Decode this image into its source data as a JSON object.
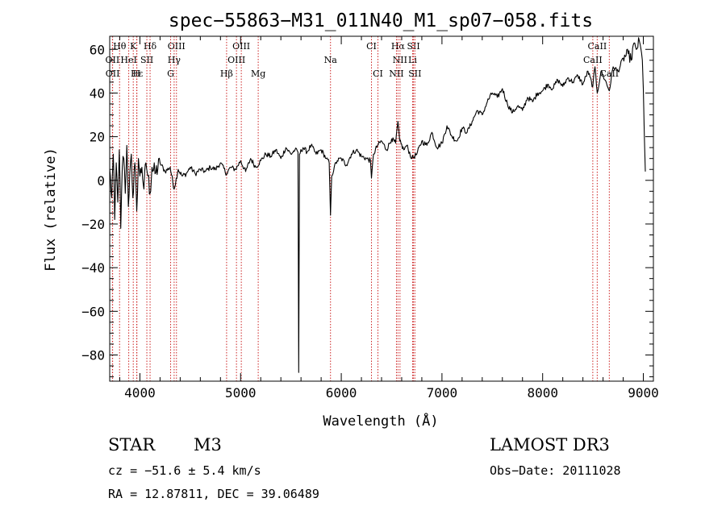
{
  "chart_data": {
    "type": "line",
    "title": "spec−55863−M31_011N40_M1_sp07−058.fits",
    "xlabel": "Wavelength (Å)",
    "ylabel": "Flux (relative)",
    "xlim": [
      3700,
      9100
    ],
    "ylim": [
      -92,
      66
    ],
    "x_ticks": [
      4000,
      5000,
      6000,
      7000,
      8000,
      9000
    ],
    "x_tick_labels": [
      "4000",
      "5000",
      "6000",
      "7000",
      "8000",
      "9000"
    ],
    "y_ticks": [
      -80,
      -60,
      -40,
      -20,
      0,
      20,
      40,
      60
    ],
    "y_tick_labels": [
      "−80",
      "−60",
      "−40",
      "−20",
      "0",
      "20",
      "40",
      "60"
    ],
    "grid": false,
    "series": [
      {
        "name": "spectrum",
        "color": "#000000",
        "anchors": [
          [
            3700,
            5
          ],
          [
            3720,
            -8
          ],
          [
            3735,
            12
          ],
          [
            3750,
            -18
          ],
          [
            3765,
            8
          ],
          [
            3780,
            -10
          ],
          [
            3795,
            14
          ],
          [
            3810,
            -22
          ],
          [
            3825,
            6
          ],
          [
            3840,
            10
          ],
          [
            3855,
            -6
          ],
          [
            3870,
            16
          ],
          [
            3885,
            -12
          ],
          [
            3900,
            4
          ],
          [
            3915,
            12
          ],
          [
            3930,
            -8
          ],
          [
            3950,
            8
          ],
          [
            3968,
            -14
          ],
          [
            3985,
            10
          ],
          [
            4000,
            2
          ],
          [
            4020,
            6
          ],
          [
            4040,
            -4
          ],
          [
            4060,
            8
          ],
          [
            4080,
            2
          ],
          [
            4101,
            -6
          ],
          [
            4120,
            6
          ],
          [
            4150,
            3
          ],
          [
            4200,
            8
          ],
          [
            4250,
            4
          ],
          [
            4300,
            6
          ],
          [
            4340,
            -4
          ],
          [
            4380,
            5
          ],
          [
            4420,
            2
          ],
          [
            4460,
            3
          ],
          [
            4500,
            6
          ],
          [
            4550,
            3
          ],
          [
            4600,
            5
          ],
          [
            4650,
            4
          ],
          [
            4700,
            6
          ],
          [
            4750,
            5
          ],
          [
            4800,
            8
          ],
          [
            4861,
            3
          ],
          [
            4900,
            6
          ],
          [
            4950,
            5
          ],
          [
            5000,
            9
          ],
          [
            5050,
            4
          ],
          [
            5100,
            10
          ],
          [
            5150,
            6
          ],
          [
            5200,
            9
          ],
          [
            5250,
            12
          ],
          [
            5300,
            11
          ],
          [
            5350,
            14
          ],
          [
            5400,
            10
          ],
          [
            5450,
            15
          ],
          [
            5500,
            12
          ],
          [
            5540,
            14
          ],
          [
            5570,
            13
          ],
          [
            5577,
            -88
          ],
          [
            5585,
            12
          ],
          [
            5620,
            15
          ],
          [
            5660,
            13
          ],
          [
            5700,
            16
          ],
          [
            5750,
            12
          ],
          [
            5800,
            14
          ],
          [
            5850,
            10
          ],
          [
            5880,
            8
          ],
          [
            5893,
            -16
          ],
          [
            5905,
            2
          ],
          [
            5930,
            6
          ],
          [
            5960,
            9
          ],
          [
            6000,
            10
          ],
          [
            6050,
            7
          ],
          [
            6100,
            12
          ],
          [
            6150,
            14
          ],
          [
            6200,
            11
          ],
          [
            6250,
            10
          ],
          [
            6290,
            9
          ],
          [
            6300,
            1
          ],
          [
            6320,
            12
          ],
          [
            6360,
            16
          ],
          [
            6400,
            18
          ],
          [
            6450,
            14
          ],
          [
            6500,
            19
          ],
          [
            6540,
            17
          ],
          [
            6563,
            27
          ],
          [
            6580,
            18
          ],
          [
            6620,
            14
          ],
          [
            6650,
            16
          ],
          [
            6700,
            10
          ],
          [
            6750,
            12
          ],
          [
            6800,
            18
          ],
          [
            6850,
            16
          ],
          [
            6900,
            22
          ],
          [
            6950,
            15
          ],
          [
            7000,
            17
          ],
          [
            7050,
            25
          ],
          [
            7100,
            20
          ],
          [
            7150,
            18
          ],
          [
            7200,
            24
          ],
          [
            7250,
            22
          ],
          [
            7300,
            27
          ],
          [
            7350,
            32
          ],
          [
            7400,
            30
          ],
          [
            7450,
            36
          ],
          [
            7500,
            40
          ],
          [
            7550,
            38
          ],
          [
            7600,
            42
          ],
          [
            7650,
            35
          ],
          [
            7700,
            31
          ],
          [
            7750,
            34
          ],
          [
            7800,
            32
          ],
          [
            7850,
            38
          ],
          [
            7900,
            36
          ],
          [
            7950,
            40
          ],
          [
            8000,
            41
          ],
          [
            8050,
            44
          ],
          [
            8100,
            42
          ],
          [
            8150,
            46
          ],
          [
            8200,
            43
          ],
          [
            8250,
            47
          ],
          [
            8300,
            45
          ],
          [
            8350,
            48
          ],
          [
            8400,
            44
          ],
          [
            8450,
            50
          ],
          [
            8498,
            43
          ],
          [
            8520,
            52
          ],
          [
            8542,
            40
          ],
          [
            8580,
            50
          ],
          [
            8620,
            46
          ],
          [
            8662,
            41
          ],
          [
            8700,
            52
          ],
          [
            8750,
            50
          ],
          [
            8800,
            56
          ],
          [
            8850,
            58
          ],
          [
            8880,
            55
          ],
          [
            8900,
            62
          ],
          [
            8930,
            60
          ],
          [
            8960,
            64
          ],
          [
            8990,
            55
          ],
          [
            9000,
            42
          ],
          [
            9010,
            20
          ],
          [
            9020,
            4
          ]
        ]
      }
    ],
    "line_markers": [
      {
        "name": "Hθ",
        "wavelength": 3798,
        "row": 0
      },
      {
        "name": "K",
        "wavelength": 3934,
        "row": 0
      },
      {
        "name": "Hδ",
        "wavelength": 4101,
        "row": 0
      },
      {
        "name": "OIII",
        "wavelength": 4363,
        "row": 0
      },
      {
        "name": "OIII",
        "wavelength": 5007,
        "row": 0
      },
      {
        "name": "CI",
        "wavelength": 6300,
        "row": 0
      },
      {
        "name": "Hα",
        "wavelength": 6563,
        "row": 0
      },
      {
        "name": "SII",
        "wavelength": 6717,
        "row": 0
      },
      {
        "name": "CaII",
        "wavelength": 8542,
        "row": 0
      },
      {
        "name": "OII",
        "wavelength": 3727,
        "row": 1
      },
      {
        "name": "HeI",
        "wavelength": 3889,
        "row": 1
      },
      {
        "name": "SII",
        "wavelength": 4069,
        "row": 1
      },
      {
        "name": "Hγ",
        "wavelength": 4340,
        "row": 1
      },
      {
        "name": "OIII",
        "wavelength": 4959,
        "row": 1
      },
      {
        "name": "Na",
        "wavelength": 5893,
        "row": 1
      },
      {
        "name": "NII",
        "wavelength": 6583,
        "row": 1
      },
      {
        "name": "Li",
        "wavelength": 6708,
        "row": 1
      },
      {
        "name": "CaII",
        "wavelength": 8498,
        "row": 1
      },
      {
        "name": "OII",
        "wavelength": 3729,
        "row": 2
      },
      {
        "name": "Hε",
        "wavelength": 3970,
        "row": 2
      },
      {
        "name": "H",
        "wavelength": 3968,
        "row": 2
      },
      {
        "name": "G",
        "wavelength": 4305,
        "row": 2
      },
      {
        "name": "Hβ",
        "wavelength": 4861,
        "row": 2
      },
      {
        "name": "Mg",
        "wavelength": 5175,
        "row": 2
      },
      {
        "name": "CI",
        "wavelength": 6364,
        "row": 2
      },
      {
        "name": "NII",
        "wavelength": 6548,
        "row": 2
      },
      {
        "name": "SII",
        "wavelength": 6731,
        "row": 2
      },
      {
        "name": "CaII",
        "wavelength": 8662,
        "row": 2
      }
    ]
  },
  "info": {
    "class_label": "STAR",
    "subclass": "M3",
    "survey": "LAMOST DR3",
    "cz": "cz = −51.6 ± 5.4 km/s",
    "obs_date": "Obs−Date: 20111028",
    "coords": "RA =  12.87811, DEC =  39.06489"
  }
}
